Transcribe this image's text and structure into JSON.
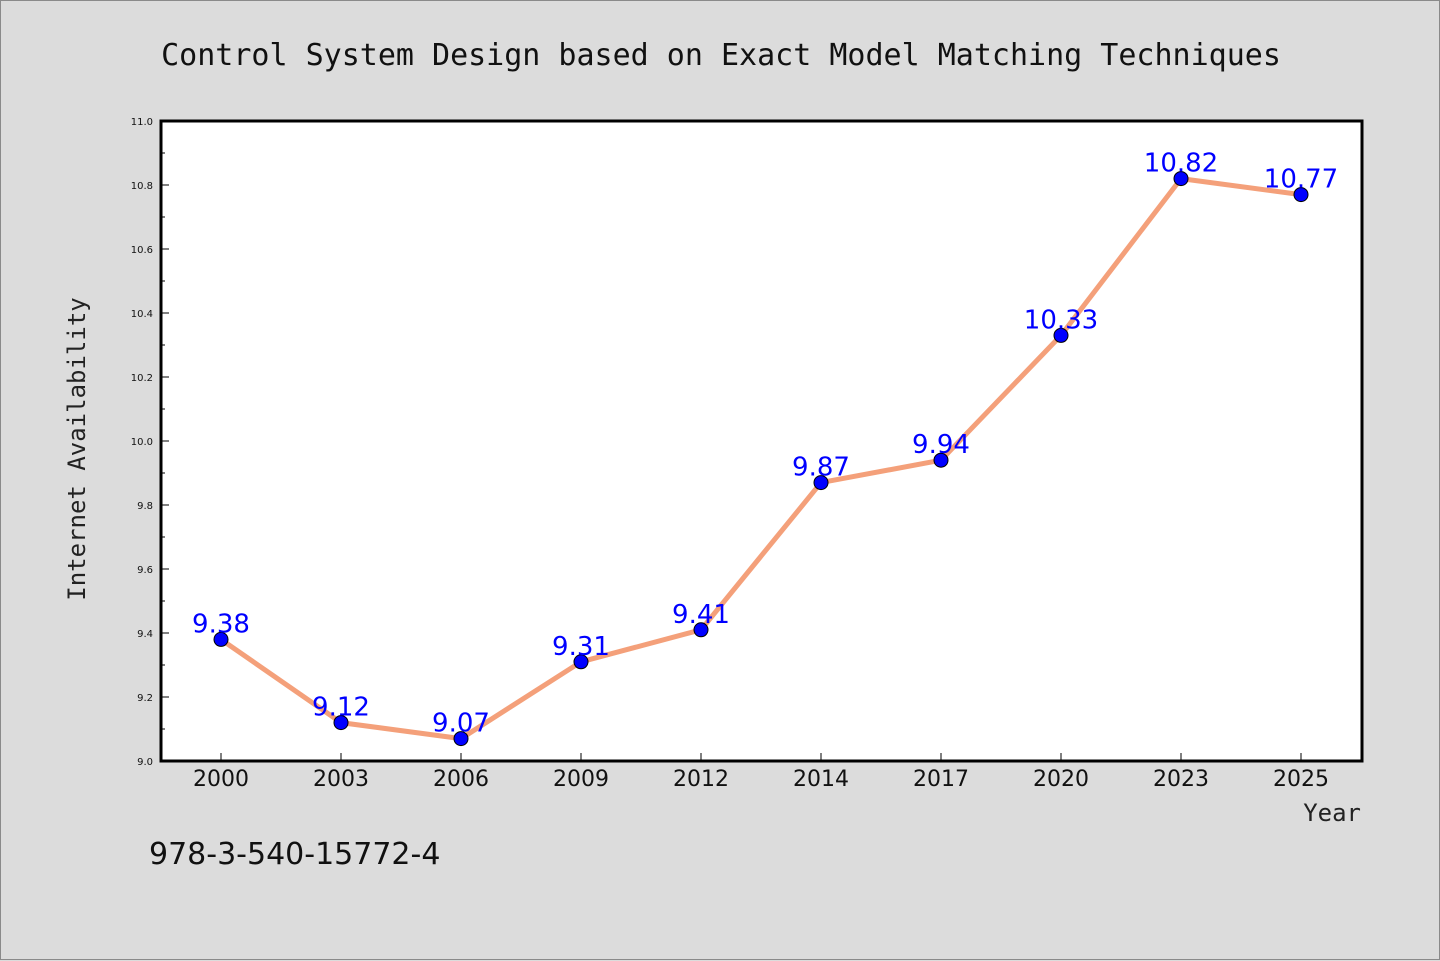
{
  "chart_data": {
    "type": "line",
    "title": "Control System Design based on Exact Model Matching Techniques",
    "xlabel": "Year",
    "ylabel": "Internet Availability",
    "categories": [
      "2000",
      "2003",
      "2006",
      "2009",
      "2012",
      "2014",
      "2017",
      "2020",
      "2023",
      "2025"
    ],
    "values": [
      9.38,
      9.12,
      9.07,
      9.31,
      9.41,
      9.87,
      9.94,
      10.33,
      10.82,
      10.77
    ],
    "data_labels": [
      "9.38",
      "9.12",
      "9.07",
      "9.31",
      "9.41",
      "9.87",
      "9.94",
      "10.33",
      "10.82",
      "10.77"
    ],
    "ylim": [
      9.0,
      11.0
    ],
    "yticks": [
      "9.0",
      "9.2",
      "9.4",
      "9.6",
      "9.8",
      "10.0",
      "10.2",
      "10.4",
      "10.6",
      "10.8",
      "11.0"
    ],
    "grid": false,
    "line_color": "#f4a07a",
    "marker_color": "#0000ff",
    "label_color": "#0000ff"
  },
  "footer": {
    "isbn": "978-3-540-15772-4"
  }
}
